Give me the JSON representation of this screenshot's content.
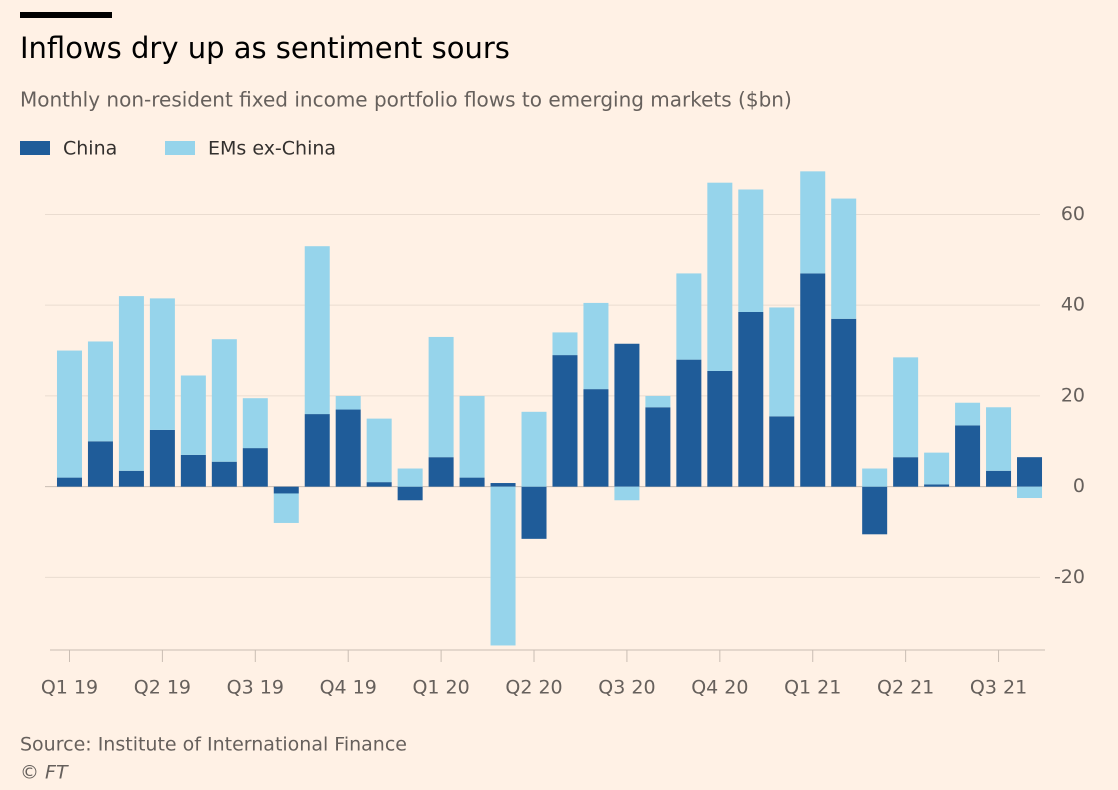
{
  "chart_data": {
    "type": "bar",
    "stacked": true,
    "title": "Inflows dry up as sentiment sours",
    "subtitle": "Monthly non-resident fixed income portfolio flows to emerging markets ($bn)",
    "categories": [
      "Q1 19",
      null,
      null,
      "Q2 19",
      null,
      null,
      "Q3 19",
      null,
      null,
      "Q4 19",
      null,
      null,
      "Q1 20",
      null,
      null,
      "Q2 20",
      null,
      null,
      "Q3 20",
      null,
      null,
      "Q4 20",
      null,
      null,
      "Q1 21",
      null,
      null,
      "Q2 21",
      null,
      null,
      "Q3 21",
      null
    ],
    "series": [
      {
        "name": "China",
        "color": "#1f5c99",
        "values": [
          2,
          10,
          3.5,
          12.5,
          7,
          5.5,
          8.5,
          -1.5,
          16,
          17,
          1,
          -3,
          6.5,
          2,
          0.8,
          -11.5,
          29,
          21.5,
          31.5,
          17.5,
          28,
          25.5,
          38.5,
          15.5,
          47,
          37,
          -10.5,
          6.5,
          0.5,
          13.5,
          3.5,
          6.5
        ]
      },
      {
        "name": "EMs ex-China",
        "color": "#96d4eb",
        "values": [
          28,
          22,
          38.5,
          29,
          17.5,
          27,
          11,
          -6.5,
          37,
          3,
          14,
          4,
          26.5,
          18,
          -35,
          16.5,
          5,
          19,
          -3,
          2.5,
          19,
          41.5,
          27,
          24,
          22.5,
          26.5,
          4,
          22,
          7,
          5,
          14,
          -2.5
        ]
      }
    ],
    "ylim": [
      -36,
      72
    ],
    "yticks": [
      -20,
      0,
      20,
      40,
      60
    ],
    "grid": true,
    "source": "Source: Institute of International Finance",
    "credit": "© FT"
  }
}
